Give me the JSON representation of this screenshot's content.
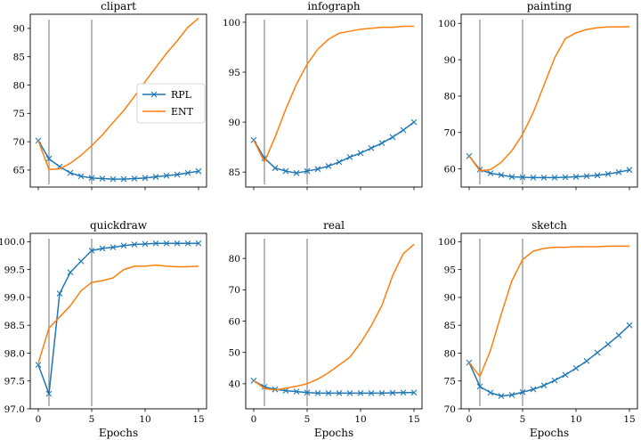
{
  "chart_data": [
    {
      "type": "line",
      "title": "clipart",
      "xlabel": "",
      "ylim": [
        62,
        92.5
      ],
      "yticks": [
        65,
        70,
        75,
        80,
        85,
        90
      ],
      "vlines": [
        1,
        5
      ],
      "legend": "upper-center",
      "series": [
        {
          "name": "RPL",
          "marker": "x",
          "color": "#1f77b4",
          "x": [
            0,
            1,
            2,
            3,
            4,
            5,
            6,
            7,
            8,
            9,
            10,
            11,
            12,
            13,
            14,
            15
          ],
          "values": [
            70.2,
            67.0,
            65.6,
            64.5,
            63.9,
            63.6,
            63.5,
            63.4,
            63.4,
            63.5,
            63.6,
            63.8,
            64.0,
            64.2,
            64.5,
            64.8
          ]
        },
        {
          "name": "ENT",
          "color": "#ff7f0e",
          "x": [
            0,
            1,
            2,
            3,
            4,
            5,
            6,
            7,
            8,
            9,
            10,
            11,
            12,
            13,
            14,
            15
          ],
          "values": [
            70.2,
            65.1,
            65.2,
            66.2,
            67.6,
            69.3,
            71.2,
            73.4,
            75.5,
            78.0,
            80.6,
            83.1,
            85.6,
            87.8,
            90.2,
            91.8
          ]
        }
      ]
    },
    {
      "type": "line",
      "title": "infograph",
      "xlabel": "",
      "ylim": [
        83.5,
        100.8
      ],
      "yticks": [
        85,
        90,
        95,
        100
      ],
      "vlines": [
        1,
        5
      ],
      "series": [
        {
          "name": "RPL",
          "marker": "x",
          "color": "#1f77b4",
          "x": [
            0,
            1,
            2,
            3,
            4,
            5,
            6,
            7,
            8,
            9,
            10,
            11,
            12,
            13,
            14,
            15
          ],
          "values": [
            88.2,
            86.4,
            85.4,
            85.1,
            84.9,
            85.1,
            85.3,
            85.6,
            86.0,
            86.5,
            86.9,
            87.4,
            87.9,
            88.5,
            89.2,
            90.0
          ]
        },
        {
          "name": "ENT",
          "color": "#ff7f0e",
          "x": [
            0,
            1,
            2,
            3,
            4,
            5,
            6,
            7,
            8,
            9,
            10,
            11,
            12,
            13,
            14,
            15
          ],
          "values": [
            88.2,
            86.0,
            88.5,
            91.3,
            93.8,
            95.8,
            97.3,
            98.3,
            98.9,
            99.1,
            99.3,
            99.4,
            99.5,
            99.5,
            99.6,
            99.6
          ]
        }
      ]
    },
    {
      "type": "line",
      "title": "painting",
      "xlabel": "",
      "ylim": [
        55,
        102.5
      ],
      "yticks": [
        60,
        70,
        80,
        90,
        100
      ],
      "vlines": [
        1,
        5
      ],
      "series": [
        {
          "name": "RPL",
          "marker": "x",
          "color": "#1f77b4",
          "x": [
            0,
            1,
            2,
            3,
            4,
            5,
            6,
            7,
            8,
            9,
            10,
            11,
            12,
            13,
            14,
            15
          ],
          "values": [
            63.5,
            59.8,
            58.8,
            58.3,
            57.8,
            57.7,
            57.6,
            57.6,
            57.6,
            57.7,
            57.8,
            58.0,
            58.2,
            58.6,
            59.1,
            59.7
          ]
        },
        {
          "name": "ENT",
          "color": "#ff7f0e",
          "x": [
            0,
            1,
            2,
            3,
            4,
            5,
            6,
            7,
            8,
            9,
            10,
            11,
            12,
            13,
            14,
            15
          ],
          "values": [
            63.5,
            59.5,
            59.8,
            61.8,
            65.0,
            69.5,
            75.5,
            83.0,
            90.5,
            95.8,
            97.4,
            98.3,
            98.8,
            99.0,
            99.0,
            99.1
          ]
        }
      ]
    },
    {
      "type": "line",
      "title": "quickdraw",
      "xlabel": "Epochs",
      "ylim": [
        97.0,
        100.15
      ],
      "yticks": [
        97.0,
        97.5,
        98.0,
        98.5,
        99.0,
        99.5,
        100.0
      ],
      "ytick_labels": [
        "97.0",
        "97.5",
        "98.0",
        "98.5",
        "99.0",
        "99.5",
        "100.0"
      ],
      "xticks": [
        0,
        5,
        10,
        15
      ],
      "vlines": [
        1,
        5
      ],
      "series": [
        {
          "name": "RPL",
          "marker": "x",
          "color": "#1f77b4",
          "x": [
            0,
            1,
            2,
            3,
            4,
            5,
            6,
            7,
            8,
            9,
            10,
            11,
            12,
            13,
            14,
            15
          ],
          "values": [
            97.79,
            97.27,
            99.07,
            99.45,
            99.65,
            99.84,
            99.88,
            99.9,
            99.93,
            99.95,
            99.96,
            99.97,
            99.97,
            99.97,
            99.97,
            99.97
          ]
        },
        {
          "name": "ENT",
          "color": "#ff7f0e",
          "x": [
            0,
            1,
            2,
            3,
            4,
            5,
            6,
            7,
            8,
            9,
            10,
            11,
            12,
            13,
            14,
            15
          ],
          "values": [
            97.82,
            98.45,
            98.65,
            98.85,
            99.12,
            99.27,
            99.3,
            99.35,
            99.5,
            99.56,
            99.56,
            99.58,
            99.56,
            99.55,
            99.55,
            99.56
          ]
        }
      ]
    },
    {
      "type": "line",
      "title": "real",
      "xlabel": "Epochs",
      "ylim": [
        32,
        88
      ],
      "yticks": [
        40,
        50,
        60,
        70,
        80
      ],
      "xticks": [
        0,
        5,
        10,
        15
      ],
      "vlines": [
        1,
        5
      ],
      "series": [
        {
          "name": "RPL",
          "marker": "x",
          "color": "#1f77b4",
          "x": [
            0,
            1,
            2,
            3,
            4,
            5,
            6,
            7,
            8,
            9,
            10,
            11,
            12,
            13,
            14,
            15
          ],
          "values": [
            41.0,
            39.0,
            38.2,
            37.8,
            37.5,
            37.2,
            37.0,
            37.0,
            37.0,
            37.0,
            37.0,
            37.0,
            37.0,
            37.1,
            37.2,
            37.2
          ]
        },
        {
          "name": "ENT",
          "color": "#ff7f0e",
          "x": [
            0,
            1,
            2,
            3,
            4,
            5,
            6,
            7,
            8,
            9,
            10,
            11,
            12,
            13,
            14,
            15
          ],
          "values": [
            41.0,
            38.5,
            38.0,
            38.6,
            39.2,
            40.0,
            41.5,
            43.5,
            46.0,
            48.5,
            53.0,
            58.5,
            65.0,
            74.5,
            81.5,
            84.5
          ]
        }
      ]
    },
    {
      "type": "line",
      "title": "sketch",
      "xlabel": "Epochs",
      "ylim": [
        70,
        101.5
      ],
      "yticks": [
        70,
        75,
        80,
        85,
        90,
        95,
        100
      ],
      "xticks": [
        0,
        5,
        10,
        15
      ],
      "vlines": [
        1,
        5
      ],
      "series": [
        {
          "name": "RPL",
          "marker": "x",
          "color": "#1f77b4",
          "x": [
            0,
            1,
            2,
            3,
            4,
            5,
            6,
            7,
            8,
            9,
            10,
            11,
            12,
            13,
            14,
            15
          ],
          "values": [
            78.3,
            74.0,
            72.9,
            72.3,
            72.5,
            73.0,
            73.5,
            74.2,
            75.1,
            76.1,
            77.3,
            78.6,
            80.1,
            81.6,
            83.2,
            85.0
          ]
        },
        {
          "name": "ENT",
          "color": "#ff7f0e",
          "x": [
            0,
            1,
            2,
            3,
            4,
            5,
            6,
            7,
            8,
            9,
            10,
            11,
            12,
            13,
            14,
            15
          ],
          "values": [
            78.3,
            75.8,
            80.5,
            87.0,
            93.0,
            96.8,
            98.3,
            98.8,
            99.0,
            99.0,
            99.1,
            99.1,
            99.1,
            99.2,
            99.2,
            99.2
          ]
        }
      ]
    }
  ]
}
